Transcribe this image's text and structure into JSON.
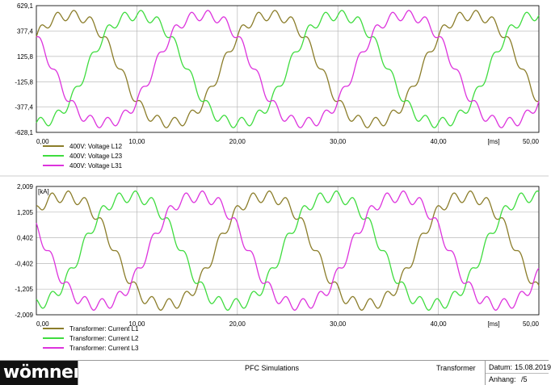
{
  "chart_data": [
    {
      "type": "line",
      "y_ticks": [
        "629,1",
        "377,4",
        "125,8",
        "-125,8",
        "-377,4",
        "-628,1"
      ],
      "y_tick_values": [
        629.1,
        377.4,
        125.8,
        -125.8,
        -377.4,
        -628.1
      ],
      "ylim": [
        -628.1,
        629.1
      ],
      "x_ticks": [
        "0,00",
        "10,00",
        "20,00",
        "30,00",
        "40,00",
        "[ms]",
        "50,00"
      ],
      "xlim": [
        0,
        50
      ],
      "x_unit": "[ms]",
      "grid": true,
      "legend_position": "bottom-left",
      "series": [
        {
          "name": "400V: Voltage L12",
          "color": "#8b7d2a",
          "amplitude": 567,
          "phase_deg": 30,
          "ripple": 0.09
        },
        {
          "name": "400V: Voltage L23",
          "color": "#3fdc3f",
          "amplitude": 567,
          "phase_deg": -90,
          "ripple": 0.09
        },
        {
          "name": "400V: Voltage L31",
          "color": "#dd33dd",
          "amplitude": 567,
          "phase_deg": 150,
          "ripple": 0.09
        }
      ],
      "frequency_hz": 50
    },
    {
      "type": "line",
      "unit_label": "[kA]",
      "y_ticks": [
        "2,009",
        "1,205",
        "0,402",
        "-0,402",
        "-1,205",
        "-2,009"
      ],
      "y_tick_values": [
        2.009,
        1.205,
        0.402,
        -0.402,
        -1.205,
        -2.009
      ],
      "ylim": [
        -2.009,
        2.009
      ],
      "x_ticks": [
        "0,00",
        "10,00",
        "20,00",
        "30,00",
        "40,00",
        "[ms]",
        "50,00"
      ],
      "xlim": [
        0,
        50
      ],
      "x_unit": "[ms]",
      "grid": true,
      "legend_position": "bottom-left",
      "series": [
        {
          "name": "Transformer: Current L1",
          "color": "#8b7d2a",
          "amplitude": 1.8,
          "phase_deg": 40,
          "ripple": 0.1
        },
        {
          "name": "Transformer: Current L2",
          "color": "#3fdc3f",
          "amplitude": 1.8,
          "phase_deg": -80,
          "ripple": 0.1
        },
        {
          "name": "Transformer: Current L3",
          "color": "#dd33dd",
          "amplitude": 1.8,
          "phase_deg": 160,
          "ripple": 0.1
        }
      ],
      "frequency_hz": 50
    }
  ],
  "footer": {
    "logo": "wömner",
    "title": "PFC Simulations",
    "subtitle": "Transformer",
    "date_label": "Datum:",
    "date_value": "15.08.2019",
    "attachment_label": "Anhang:",
    "attachment_value": "/5"
  },
  "colors": {
    "grid": "#b8b8b8",
    "axis": "#000000",
    "logo_bg": "#111111"
  }
}
